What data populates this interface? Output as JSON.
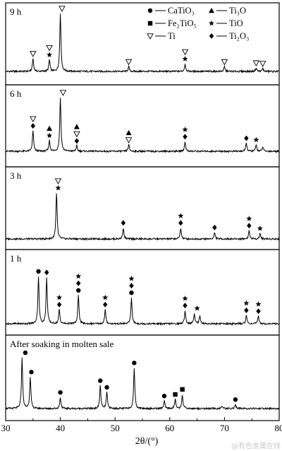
{
  "chart_data": {
    "type": "line",
    "xlabel": "2θ/(°)",
    "xlim": [
      30,
      80
    ],
    "xticks": [
      30,
      40,
      50,
      60,
      70,
      80
    ],
    "legend": {
      "placement": "top-right",
      "entries": [
        {
          "symbol": "circle",
          "label": "CaTiO₃"
        },
        {
          "symbol": "triangle",
          "label": "Ti₃O"
        },
        {
          "symbol": "square",
          "label": "Fe₂TiO₅"
        },
        {
          "symbol": "star",
          "label": "TiO"
        },
        {
          "symbol": "open-triangle",
          "label": "Ti"
        },
        {
          "symbol": "diamond",
          "label": "Ti₂O₃"
        }
      ]
    },
    "panels": [
      {
        "label": "9 h",
        "peaks": [
          [
            35.0,
            0.22
          ],
          [
            38.0,
            0.2
          ],
          [
            40.0,
            1.0
          ],
          [
            52.5,
            0.08
          ],
          [
            62.8,
            0.13
          ],
          [
            70.0,
            0.08
          ],
          [
            75.8,
            0.06
          ],
          [
            77.0,
            0.05
          ]
        ],
        "markers": [
          {
            "x": 35.0,
            "symbols": [
              "open-triangle"
            ]
          },
          {
            "x": 38.0,
            "symbols": [
              "star",
              "open-triangle"
            ]
          },
          {
            "x": 40.3,
            "symbols": [
              "open-triangle"
            ]
          },
          {
            "x": 52.5,
            "symbols": [
              "open-triangle"
            ]
          },
          {
            "x": 62.8,
            "symbols": [
              "star",
              "open-triangle"
            ]
          },
          {
            "x": 70.0,
            "symbols": [
              "open-triangle"
            ]
          },
          {
            "x": 75.8,
            "symbols": [
              "open-triangle"
            ]
          },
          {
            "x": 77.0,
            "symbols": [
              "open-triangle"
            ]
          }
        ]
      },
      {
        "label": "6 h",
        "peaks": [
          [
            35.0,
            0.38
          ],
          [
            38.0,
            0.2
          ],
          [
            40.0,
            1.0
          ],
          [
            43.0,
            0.1
          ],
          [
            52.5,
            0.12
          ],
          [
            62.8,
            0.18
          ],
          [
            74.0,
            0.15
          ],
          [
            75.8,
            0.12
          ],
          [
            77.0,
            0.08
          ]
        ],
        "markers": [
          {
            "x": 35.0,
            "symbols": [
              "diamond",
              "open-triangle"
            ]
          },
          {
            "x": 38.0,
            "symbols": [
              "star",
              "triangle"
            ]
          },
          {
            "x": 40.5,
            "symbols": [
              "open-triangle"
            ]
          },
          {
            "x": 43.0,
            "symbols": [
              "diamond",
              "open-triangle",
              "triangle"
            ]
          },
          {
            "x": 52.5,
            "symbols": [
              "open-triangle",
              "triangle"
            ]
          },
          {
            "x": 62.8,
            "symbols": [
              "diamond",
              "star"
            ]
          },
          {
            "x": 74.0,
            "symbols": [
              "diamond"
            ]
          },
          {
            "x": 75.8,
            "symbols": [
              "star"
            ]
          }
        ]
      },
      {
        "label": "3 h",
        "peaks": [
          [
            39.3,
            1.0
          ],
          [
            51.5,
            0.24
          ],
          [
            62.0,
            0.24
          ],
          [
            68.2,
            0.14
          ],
          [
            74.5,
            0.18
          ],
          [
            76.5,
            0.12
          ]
        ],
        "markers": [
          {
            "x": 39.6,
            "symbols": [
              "star",
              "open-triangle"
            ]
          },
          {
            "x": 51.5,
            "symbols": [
              "diamond"
            ]
          },
          {
            "x": 62.0,
            "symbols": [
              "diamond",
              "star"
            ]
          },
          {
            "x": 68.2,
            "symbols": [
              "diamond"
            ]
          },
          {
            "x": 74.5,
            "symbols": [
              "diamond",
              "star"
            ]
          },
          {
            "x": 76.5,
            "symbols": [
              "star"
            ]
          }
        ]
      },
      {
        "label": "1 h",
        "peaks": [
          [
            36.0,
            1.0
          ],
          [
            37.5,
            0.98
          ],
          [
            39.8,
            0.3
          ],
          [
            43.3,
            0.6
          ],
          [
            48.2,
            0.3
          ],
          [
            53.0,
            0.55
          ],
          [
            62.8,
            0.28
          ],
          [
            64.5,
            0.22
          ],
          [
            65.5,
            0.18
          ],
          [
            74.0,
            0.18
          ],
          [
            76.2,
            0.16
          ]
        ],
        "markers": [
          {
            "x": 36.0,
            "symbols": [
              "circle"
            ]
          },
          {
            "x": 37.5,
            "symbols": [
              "diamond"
            ]
          },
          {
            "x": 39.8,
            "symbols": [
              "diamond",
              "star"
            ]
          },
          {
            "x": 43.3,
            "symbols": [
              "circle",
              "diamond",
              "star"
            ]
          },
          {
            "x": 48.2,
            "symbols": [
              "diamond",
              "star"
            ]
          },
          {
            "x": 53.0,
            "symbols": [
              "circle",
              "diamond",
              "star"
            ]
          },
          {
            "x": 62.8,
            "symbols": [
              "diamond",
              "star"
            ]
          },
          {
            "x": 65.0,
            "symbols": [
              "star"
            ]
          },
          {
            "x": 74.0,
            "symbols": [
              "diamond",
              "star"
            ]
          },
          {
            "x": 76.2,
            "symbols": [
              "diamond",
              "star"
            ]
          }
        ]
      },
      {
        "label": "After soaking in molten sale",
        "peaks": [
          [
            33.0,
            1.0
          ],
          [
            34.5,
            0.62
          ],
          [
            40.0,
            0.22
          ],
          [
            47.3,
            0.45
          ],
          [
            48.5,
            0.32
          ],
          [
            53.5,
            0.8
          ],
          [
            59.0,
            0.15
          ],
          [
            61.0,
            0.18
          ],
          [
            62.3,
            0.28
          ],
          [
            69.5,
            0.05
          ],
          [
            72.0,
            0.08
          ]
        ],
        "markers": [
          {
            "x": 33.6,
            "symbols": [
              "circle"
            ]
          },
          {
            "x": 34.7,
            "symbols": [
              "circle"
            ]
          },
          {
            "x": 40.0,
            "symbols": [
              "circle"
            ]
          },
          {
            "x": 47.3,
            "symbols": [
              "circle"
            ]
          },
          {
            "x": 48.5,
            "symbols": [
              "circle"
            ]
          },
          {
            "x": 53.5,
            "symbols": [
              "circle"
            ]
          },
          {
            "x": 59.0,
            "symbols": [
              "circle"
            ]
          },
          {
            "x": 61.0,
            "symbols": [
              "square"
            ]
          },
          {
            "x": 62.3,
            "symbols": [
              "square"
            ]
          },
          {
            "x": 72.0,
            "symbols": [
              "circle"
            ]
          }
        ]
      }
    ]
  },
  "watermark": "@有色金属在线"
}
